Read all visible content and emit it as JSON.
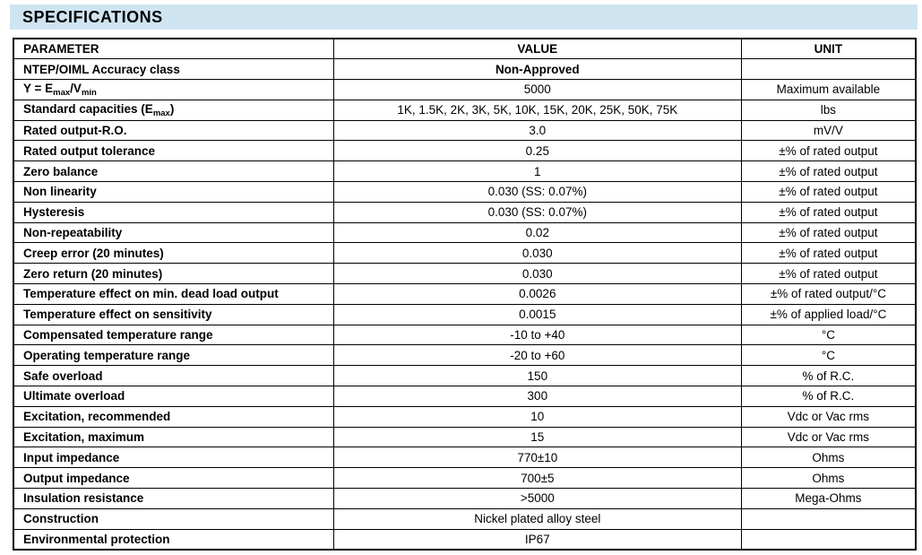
{
  "section": {
    "title": "SPECIFICATIONS"
  },
  "theme": {
    "title_bar_bg": "#cfe4f1",
    "table_border": "#000000",
    "text_color": "#000000",
    "page_bg": "#ffffff"
  },
  "table": {
    "columns": [
      "PARAMETER",
      "VALUE",
      "UNIT"
    ],
    "rows": [
      {
        "parameter": "NTEP/OIML Accuracy class",
        "value": "Non-Approved",
        "unit": "",
        "bold_value": true
      },
      {
        "parameter": "Y = E_{max}/V_{min}",
        "value": "5000",
        "unit": "Maximum available"
      },
      {
        "parameter": "Standard capacities (E_{max})",
        "value": "1K, 1.5K, 2K, 3K, 5K, 10K, 15K, 20K, 25K, 50K, 75K",
        "unit": "lbs"
      },
      {
        "parameter": "Rated output-R.O.",
        "value": "3.0",
        "unit": "mV/V"
      },
      {
        "parameter": "Rated output tolerance",
        "value": "0.25",
        "unit": "±% of rated output"
      },
      {
        "parameter": "Zero balance",
        "value": "1",
        "unit": "±% of rated output"
      },
      {
        "parameter": "Non linearity",
        "value": "0.030 (SS: 0.07%)",
        "unit": "±% of rated output"
      },
      {
        "parameter": "Hysteresis",
        "value": "0.030 (SS: 0.07%)",
        "unit": "±% of rated output"
      },
      {
        "parameter": "Non-repeatability",
        "value": "0.02",
        "unit": "±% of rated output"
      },
      {
        "parameter": "Creep error (20 minutes)",
        "value": "0.030",
        "unit": "±% of rated output"
      },
      {
        "parameter": "Zero return (20 minutes)",
        "value": "0.030",
        "unit": "±% of rated output"
      },
      {
        "parameter": "Temperature effect on min. dead load output",
        "value": "0.0026",
        "unit": "±% of rated output/°C"
      },
      {
        "parameter": "Temperature effect on sensitivity",
        "value": "0.0015",
        "unit": "±% of applied load/°C"
      },
      {
        "parameter": "Compensated temperature range",
        "value": "-10 to +40",
        "unit": "°C"
      },
      {
        "parameter": "Operating temperature range",
        "value": "-20 to +60",
        "unit": "°C"
      },
      {
        "parameter": "Safe overload",
        "value": "150",
        "unit": "% of R.C."
      },
      {
        "parameter": "Ultimate overload",
        "value": "300",
        "unit": "% of R.C."
      },
      {
        "parameter": "Excitation, recommended",
        "value": "10",
        "unit": "Vdc or Vac rms"
      },
      {
        "parameter": "Excitation, maximum",
        "value": "15",
        "unit": "Vdc or Vac rms"
      },
      {
        "parameter": "Input impedance",
        "value": "770±10",
        "unit": "Ohms"
      },
      {
        "parameter": "Output impedance",
        "value": "700±5",
        "unit": "Ohms"
      },
      {
        "parameter": "Insulation resistance",
        "value": ">5000",
        "unit": "Mega-Ohms"
      },
      {
        "parameter": "Construction",
        "value": "Nickel plated alloy steel",
        "unit": ""
      },
      {
        "parameter": "Environmental protection",
        "value": "IP67",
        "unit": ""
      }
    ]
  }
}
